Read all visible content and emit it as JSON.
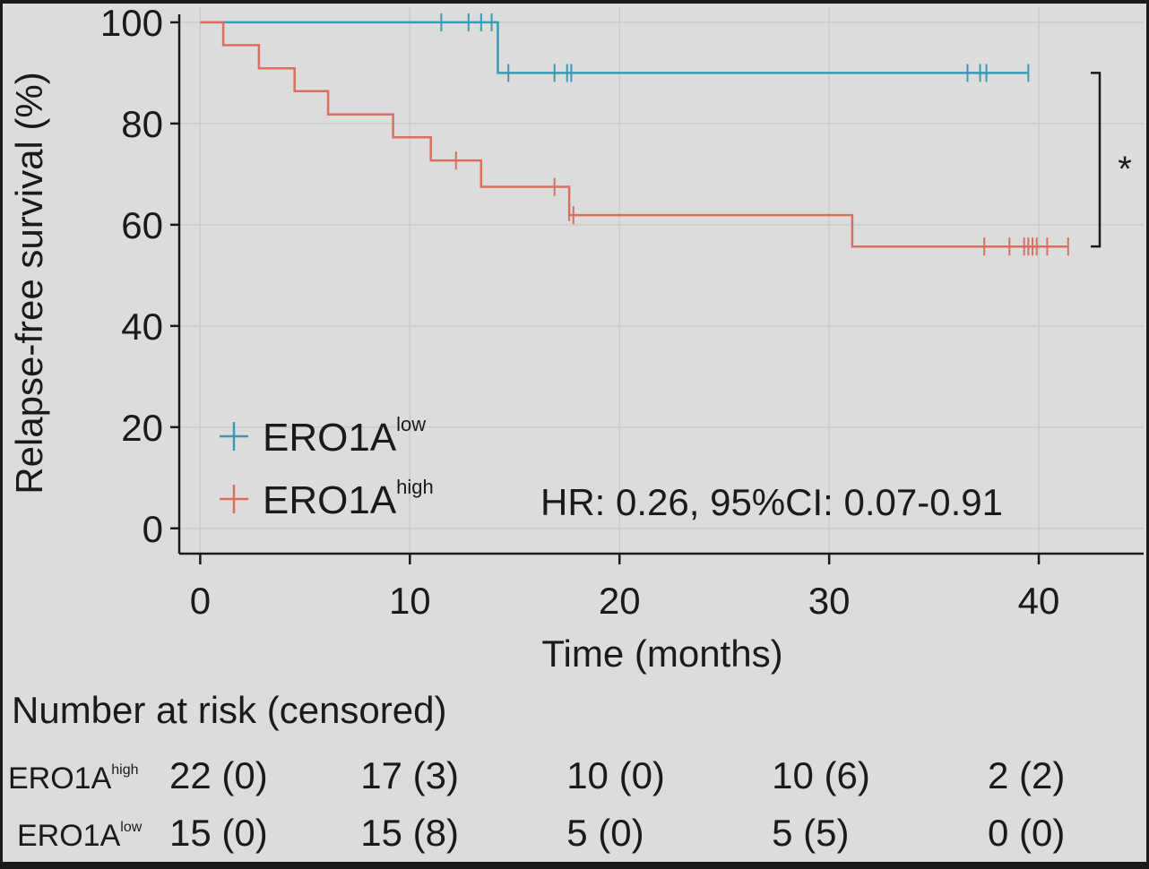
{
  "chart_data": {
    "type": "line",
    "subtype": "kaplan-meier",
    "ylabel": "Relapse-free survival (%)",
    "xlabel": "Time (months)",
    "xlim": [
      -1,
      45
    ],
    "ylim": [
      -5,
      103
    ],
    "xticks": [
      0,
      10,
      20,
      30,
      40
    ],
    "yticks": [
      0,
      20,
      40,
      60,
      80,
      100
    ],
    "grid": true,
    "legend_position": "bottom-left",
    "annotation": "HR: 0.26, 95%CI: 0.07-0.91",
    "significance": "*",
    "series": [
      {
        "name": "ERO1A",
        "name_superscript": "low",
        "color": "#3a9ab5",
        "steps": [
          [
            0,
            100
          ],
          [
            14.2,
            100
          ],
          [
            14.2,
            90
          ],
          [
            39.5,
            90
          ]
        ],
        "censored": [
          [
            11.5,
            100
          ],
          [
            12.8,
            100
          ],
          [
            13.4,
            100
          ],
          [
            13.9,
            100
          ],
          [
            14.7,
            90
          ],
          [
            16.9,
            90
          ],
          [
            17.5,
            90
          ],
          [
            17.7,
            90
          ],
          [
            36.6,
            90
          ],
          [
            37.2,
            90
          ],
          [
            37.5,
            90
          ],
          [
            39.5,
            90
          ]
        ]
      },
      {
        "name": "ERO1A",
        "name_superscript": "high",
        "color": "#d9705e",
        "steps": [
          [
            0,
            100
          ],
          [
            1.1,
            100
          ],
          [
            1.1,
            95.5
          ],
          [
            2.8,
            95.5
          ],
          [
            2.8,
            90.9
          ],
          [
            4.5,
            90.9
          ],
          [
            4.5,
            86.4
          ],
          [
            6.1,
            86.4
          ],
          [
            6.1,
            81.8
          ],
          [
            9.2,
            81.8
          ],
          [
            9.2,
            77.3
          ],
          [
            11.0,
            77.3
          ],
          [
            11.0,
            72.7
          ],
          [
            13.4,
            72.7
          ],
          [
            13.4,
            67.5
          ],
          [
            17.6,
            67.5
          ],
          [
            17.6,
            61.9
          ],
          [
            31.1,
            61.9
          ],
          [
            31.1,
            55.7
          ],
          [
            41.4,
            55.7
          ]
        ],
        "censored": [
          [
            12.2,
            72.7
          ],
          [
            16.9,
            67.5
          ],
          [
            17.6,
            62.5
          ],
          [
            17.8,
            61.9
          ],
          [
            37.4,
            55.7
          ],
          [
            38.6,
            55.7
          ],
          [
            39.3,
            55.7
          ],
          [
            39.5,
            55.7
          ],
          [
            39.7,
            55.7
          ],
          [
            39.9,
            55.7
          ],
          [
            40.4,
            55.7
          ],
          [
            41.4,
            55.7
          ]
        ]
      }
    ]
  },
  "risk_table": {
    "title": "Number at risk (censored)",
    "times": [
      0,
      10,
      20,
      30,
      40
    ],
    "rows": [
      {
        "label": "ERO1A",
        "label_sup": "high",
        "values": [
          "22 (0)",
          "17 (3)",
          "10 (0)",
          "10 (6)",
          "2 (2)"
        ]
      },
      {
        "label": "ERO1A",
        "label_sup": "low",
        "values": [
          "15 (0)",
          "15 (8)",
          "5 (0)",
          "5 (5)",
          "0 (0)"
        ]
      }
    ]
  }
}
